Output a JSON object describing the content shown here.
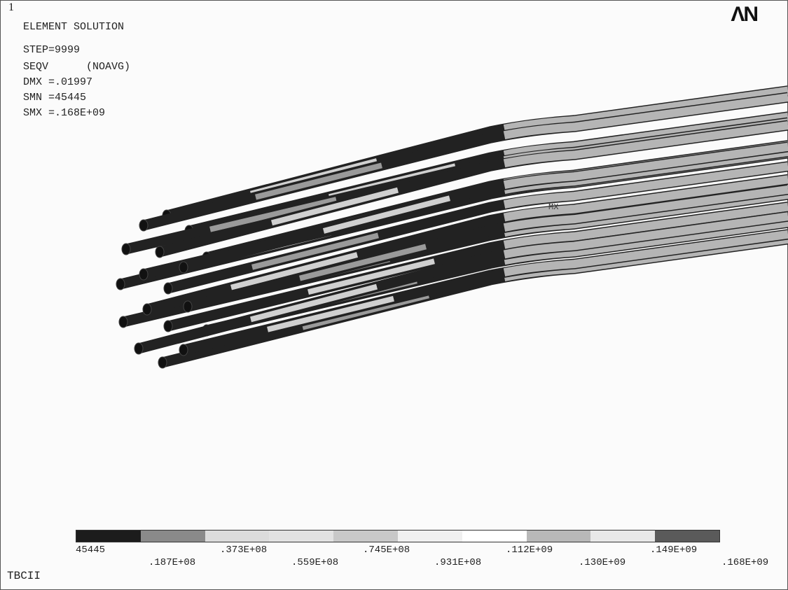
{
  "window": {
    "number": "1",
    "logo": "ΛN"
  },
  "header": {
    "title": "ELEMENT SOLUTION",
    "lines": [
      "STEP=9999",
      "SEQV      (NOAVG)",
      "DMX =.01997",
      "SMN =45445",
      "SMX =.168E+09"
    ]
  },
  "plot": {
    "max_marker": "MX"
  },
  "legend": {
    "colors": [
      "#1c1c1c",
      "#8a8a8a",
      "#dcdcdc",
      "#e2e2e2",
      "#c8c8c8",
      "#f0f0f0",
      "#ffffff",
      "#b8b8b8",
      "#e8e8e8",
      "#5a5a5a"
    ],
    "labels_top": [
      "45445",
      ".373E+08",
      ".745E+08",
      ".112E+09",
      ".149E+09"
    ],
    "labels_bottom": [
      ".187E+08",
      ".559E+08",
      ".931E+08",
      ".130E+09",
      ".168E+09"
    ]
  },
  "footer": {
    "label": "TBCII"
  }
}
